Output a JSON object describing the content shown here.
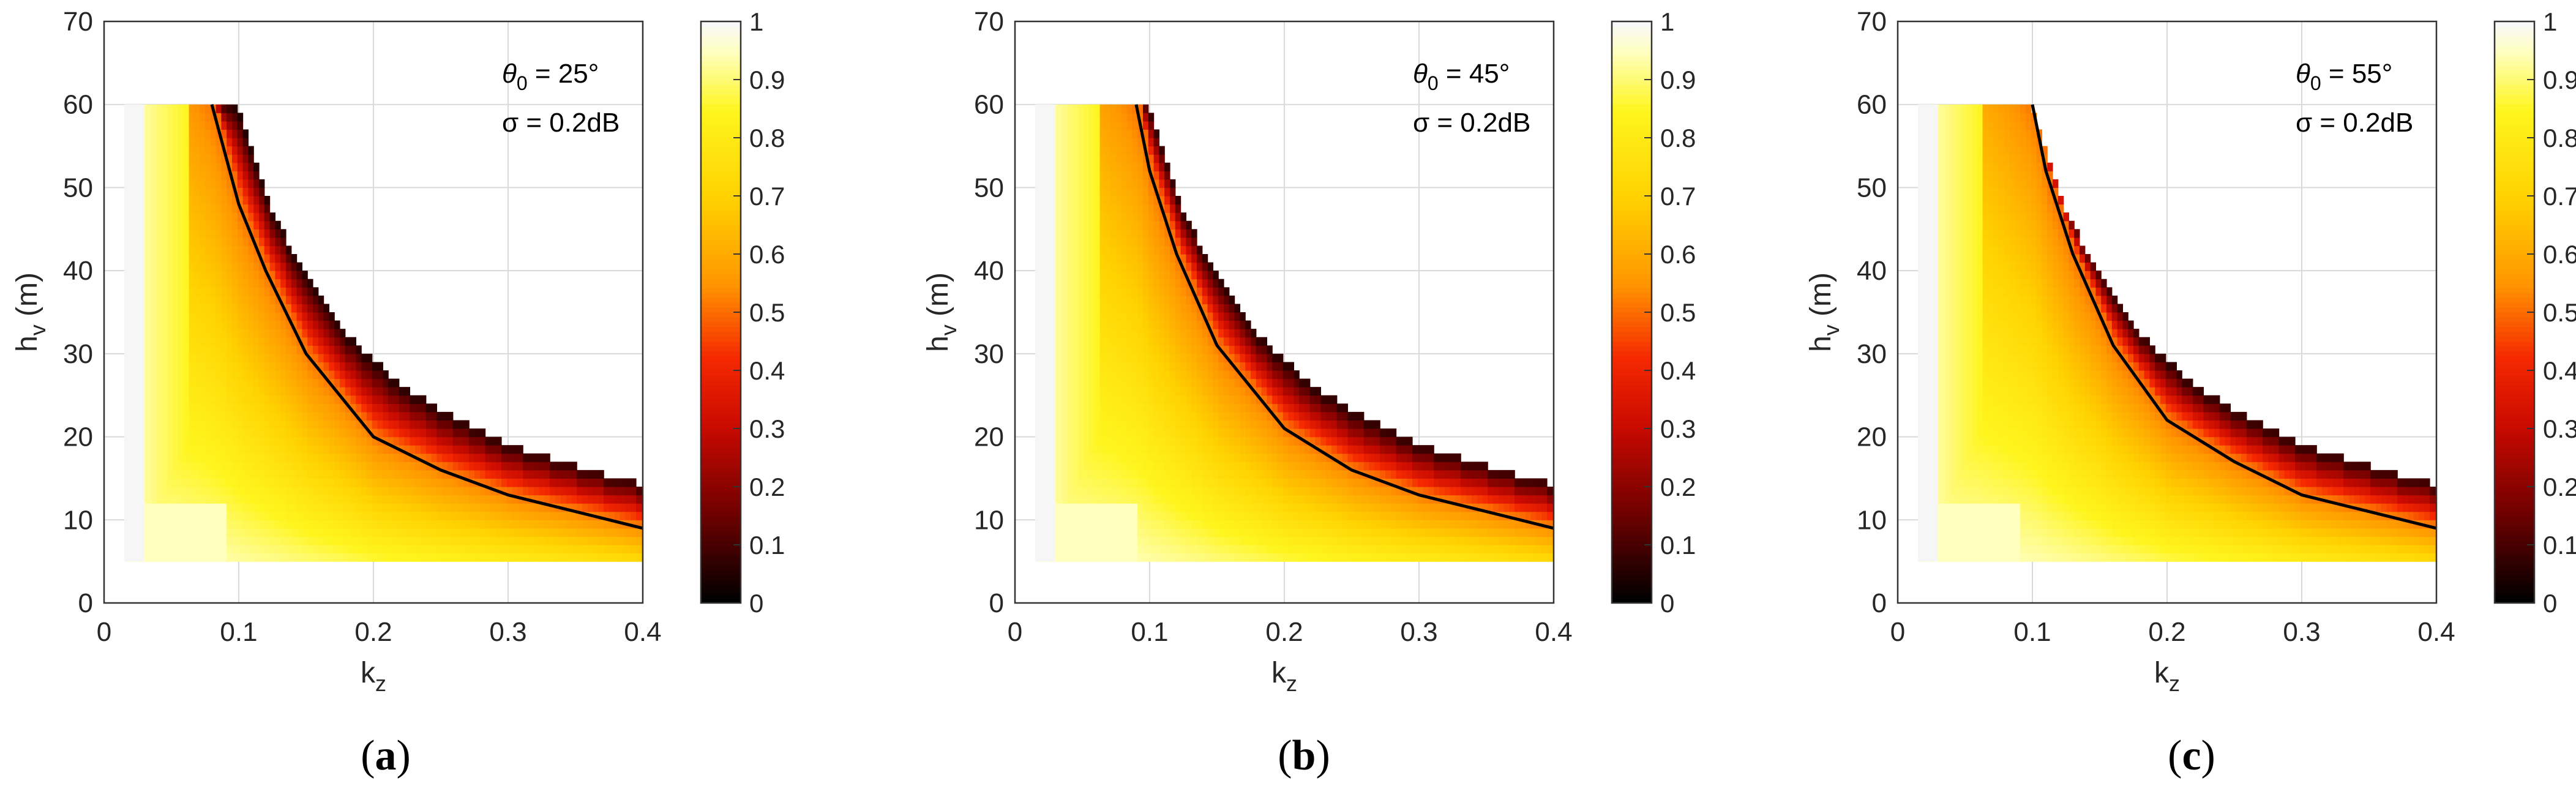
{
  "figure": {
    "panels": [
      {
        "caption_letter": "a"
      },
      {
        "caption_letter": "b"
      },
      {
        "caption_letter": "c"
      }
    ]
  },
  "chart_data": [
    {
      "type": "heatmap",
      "title": "",
      "xlabel": "k_z",
      "ylabel": "h_v (m)",
      "xlim": [
        0,
        0.4
      ],
      "ylim": [
        0,
        70
      ],
      "xticks": [
        "0",
        "0.1",
        "0.2",
        "0.3",
        "0.4"
      ],
      "yticks": [
        "0",
        "10",
        "20",
        "30",
        "40",
        "50",
        "60",
        "70"
      ],
      "grid": true,
      "colorbar": {
        "range": [
          0,
          1
        ],
        "ticks": [
          "0",
          "0.1",
          "0.2",
          "0.3",
          "0.4",
          "0.5",
          "0.6",
          "0.7",
          "0.8",
          "0.9",
          "1"
        ],
        "colormap": "hot"
      },
      "annotation": {
        "theta_label": "θ",
        "theta_sub": "0",
        "theta_value": " = 25°",
        "sigma_text": "σ = 0.2dB"
      },
      "field": {
        "h_max": 60,
        "h_min": 5,
        "kz_start": 0.015,
        "kz_cap_at_60": 0.105,
        "kh_product_cap": 5.9
      },
      "contour_points": [
        [
          0.08,
          60
        ],
        [
          0.1,
          48
        ],
        [
          0.12,
          40
        ],
        [
          0.15,
          30
        ],
        [
          0.2,
          20
        ],
        [
          0.25,
          16
        ],
        [
          0.3,
          13
        ],
        [
          0.35,
          11
        ],
        [
          0.4,
          9
        ]
      ]
    },
    {
      "type": "heatmap",
      "title": "",
      "xlabel": "k_z",
      "ylabel": "h_v (m)",
      "xlim": [
        0,
        0.4
      ],
      "ylim": [
        0,
        70
      ],
      "xticks": [
        "0",
        "0.1",
        "0.2",
        "0.3",
        "0.4"
      ],
      "yticks": [
        "0",
        "10",
        "20",
        "30",
        "40",
        "50",
        "60",
        "70"
      ],
      "grid": true,
      "colorbar": {
        "range": [
          0,
          1
        ],
        "ticks": [
          "0",
          "0.1",
          "0.2",
          "0.3",
          "0.4",
          "0.5",
          "0.6",
          "0.7",
          "0.8",
          "0.9",
          "1"
        ],
        "colormap": "hot"
      },
      "annotation": {
        "theta_label": "θ",
        "theta_sub": "0",
        "theta_value": " = 45°",
        "sigma_text": "σ = 0.2dB"
      },
      "field": {
        "h_max": 60,
        "h_min": 5,
        "kz_start": 0.015,
        "kz_cap_at_60": 0.105,
        "kh_product_cap": 5.9
      },
      "contour_points": [
        [
          0.09,
          60
        ],
        [
          0.1,
          52
        ],
        [
          0.12,
          42
        ],
        [
          0.15,
          31
        ],
        [
          0.2,
          21
        ],
        [
          0.25,
          16
        ],
        [
          0.3,
          13
        ],
        [
          0.35,
          11
        ],
        [
          0.4,
          9
        ]
      ]
    },
    {
      "type": "heatmap",
      "title": "",
      "xlabel": "k_z",
      "ylabel": "h_v (m)",
      "xlim": [
        0,
        0.4
      ],
      "ylim": [
        0,
        70
      ],
      "xticks": [
        "0",
        "0.1",
        "0.2",
        "0.3",
        "0.4"
      ],
      "yticks": [
        "0",
        "10",
        "20",
        "30",
        "40",
        "50",
        "60",
        "70"
      ],
      "grid": true,
      "colorbar": {
        "range": [
          0,
          1
        ],
        "ticks": [
          "0",
          "0.1",
          "0.2",
          "0.3",
          "0.4",
          "0.5",
          "0.6",
          "0.7",
          "0.8",
          "0.9",
          "1"
        ],
        "colormap": "hot"
      },
      "annotation": {
        "theta_label": "θ",
        "theta_sub": "0",
        "theta_value": " = 55°",
        "sigma_text": "σ = 0.2dB"
      },
      "field": {
        "h_max": 60,
        "h_min": 5,
        "kz_start": 0.015,
        "kz_cap_at_60": 0.105,
        "kh_product_cap": 5.9
      },
      "contour_points": [
        [
          0.1,
          60
        ],
        [
          0.11,
          52
        ],
        [
          0.13,
          42
        ],
        [
          0.16,
          31
        ],
        [
          0.2,
          22
        ],
        [
          0.25,
          17
        ],
        [
          0.3,
          13
        ],
        [
          0.35,
          11
        ],
        [
          0.4,
          9
        ]
      ]
    }
  ]
}
